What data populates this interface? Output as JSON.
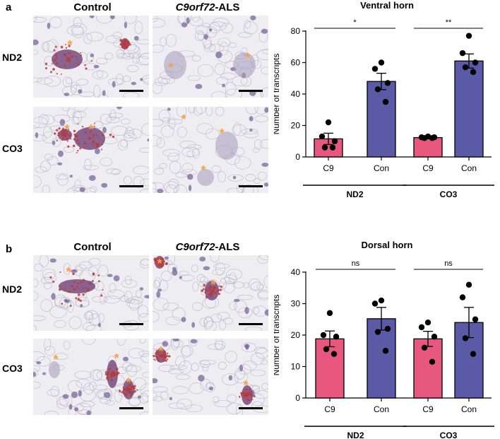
{
  "figure": {
    "panels": [
      {
        "letter": "a",
        "col_control": "Control",
        "col_als_gene": "C9orf72",
        "col_als_suffix": "-ALS",
        "rows": [
          "ND2",
          "CO3"
        ]
      },
      {
        "letter": "b",
        "col_control": "Control",
        "col_als_gene": "C9orf72",
        "col_als_suffix": "-ALS",
        "rows": [
          "ND2",
          "CO3"
        ]
      }
    ]
  },
  "colors": {
    "c9_bar": "#e8587e",
    "con_bar": "#5a5aa6",
    "marker": "#f5a24a",
    "stain_red": "#b83a3a",
    "stain_purple": "#6e5f95"
  },
  "chart_data": [
    {
      "type": "bar",
      "title": "Ventral horn",
      "ylabel": "Number of transcripts",
      "ylim": [
        0,
        80
      ],
      "yticks": [
        0,
        20,
        40,
        60,
        80
      ],
      "categories": [
        "C9",
        "Con",
        "C9",
        "Con"
      ],
      "groups": [
        "ND2",
        "CO3"
      ],
      "values": [
        11.5,
        48,
        12.3,
        61
      ],
      "errors": [
        3.6,
        5.2,
        0.6,
        4.5
      ],
      "points": [
        [
          22,
          13,
          10,
          6,
          6
        ],
        [
          60,
          56,
          47,
          43,
          35
        ],
        [
          13,
          12.5,
          12.5,
          12,
          12
        ],
        [
          77,
          66,
          60,
          57,
          54
        ]
      ],
      "significance": [
        {
          "label": "*",
          "between": [
            0,
            1
          ]
        },
        {
          "label": "**",
          "between": [
            2,
            3
          ]
        }
      ]
    },
    {
      "type": "bar",
      "title": "Dorsal horn",
      "ylabel": "Number of transcripts",
      "ylim": [
        0,
        40
      ],
      "yticks": [
        0,
        10,
        20,
        30,
        40
      ],
      "categories": [
        "C9",
        "Con",
        "C9",
        "Con"
      ],
      "groups": [
        "ND2",
        "CO3"
      ],
      "values": [
        18.8,
        25.2,
        18.8,
        24
      ],
      "errors": [
        2.5,
        3.6,
        2.4,
        4.8
      ],
      "points": [
        [
          27,
          20,
          19.5,
          15.5,
          14
        ],
        [
          31,
          30,
          22,
          21,
          15
        ],
        [
          24,
          22.5,
          19.5,
          16,
          11.5
        ],
        [
          36,
          32,
          25,
          19,
          14
        ]
      ],
      "significance": [
        {
          "label": "ns",
          "between": [
            0,
            1
          ]
        },
        {
          "label": "ns",
          "between": [
            2,
            3
          ]
        }
      ]
    }
  ]
}
